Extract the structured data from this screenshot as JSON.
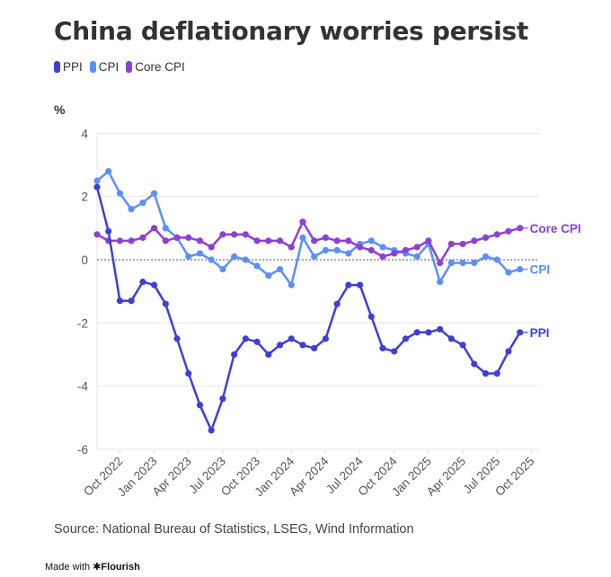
{
  "header": {
    "title": "China deflationary worries persist",
    "unit_label": "%"
  },
  "legend": [
    {
      "name": "PPI",
      "color": "#3f3fd6"
    },
    {
      "name": "CPI",
      "color": "#5b8ff9"
    },
    {
      "name": "Core CPI",
      "color": "#8e3fd4"
    }
  ],
  "footer": {
    "source": "Source: National Bureau of Statistics, LSEG, Wind Information",
    "made_with": "Made with",
    "brand": "Flourish",
    "brand_icon": "asterisk-icon"
  },
  "chart_data": {
    "type": "line",
    "title": "China deflationary worries persist",
    "xlabel": "",
    "ylabel": "%",
    "ylim": [
      -6,
      4
    ],
    "yticks": [
      4,
      2,
      0,
      -2,
      -4,
      -6
    ],
    "grid": true,
    "zero_line": "dotted",
    "legend_position": "top-left",
    "x_start": "Aug 2022",
    "x_end": "Sep 2025",
    "x_frequency": "monthly",
    "xtick_labels": [
      "Oct 2022",
      "Jan 2023",
      "Apr 2023",
      "Jul 2023",
      "Oct 2023",
      "Jan 2024",
      "Apr 2024",
      "Jul 2024",
      "Oct 2024",
      "Jan 2025",
      "Apr 2025",
      "Jul 2025",
      "Oct 2025"
    ],
    "xtick_month_index": [
      2,
      5,
      8,
      11,
      14,
      17,
      20,
      23,
      26,
      29,
      32,
      35,
      38
    ],
    "series": [
      {
        "name": "PPI",
        "color": "#3f3fd6",
        "end_label": "PPI",
        "values": [
          2.3,
          0.9,
          -1.3,
          -1.3,
          -0.7,
          -0.8,
          -1.4,
          -2.5,
          -3.6,
          -4.6,
          -5.4,
          -4.4,
          -3.0,
          -2.5,
          -2.6,
          -3.0,
          -2.7,
          -2.5,
          -2.7,
          -2.8,
          -2.5,
          -1.4,
          -0.8,
          -0.8,
          -1.8,
          -2.8,
          -2.9,
          -2.5,
          -2.3,
          -2.3,
          -2.2,
          -2.5,
          -2.7,
          -3.3,
          -3.6,
          -3.6,
          -2.9,
          -2.3
        ]
      },
      {
        "name": "CPI",
        "color": "#5b8ff9",
        "end_label": "CPI",
        "values": [
          2.5,
          2.8,
          2.1,
          1.6,
          1.8,
          2.1,
          1.0,
          0.7,
          0.1,
          0.2,
          0.0,
          -0.3,
          0.1,
          0.0,
          -0.2,
          -0.5,
          -0.3,
          -0.8,
          0.7,
          0.1,
          0.3,
          0.3,
          0.2,
          0.5,
          0.6,
          0.4,
          0.3,
          0.2,
          0.1,
          0.5,
          -0.7,
          -0.1,
          -0.1,
          -0.1,
          0.1,
          0.0,
          -0.4,
          -0.3
        ]
      },
      {
        "name": "Core CPI",
        "color": "#8e3fd4",
        "end_label": "Core CPI",
        "values": [
          0.8,
          0.6,
          0.6,
          0.6,
          0.7,
          1.0,
          0.6,
          0.7,
          0.7,
          0.6,
          0.4,
          0.8,
          0.8,
          0.8,
          0.6,
          0.6,
          0.6,
          0.4,
          1.2,
          0.6,
          0.7,
          0.6,
          0.6,
          0.4,
          0.3,
          0.1,
          0.2,
          0.3,
          0.4,
          0.6,
          -0.1,
          0.5,
          0.5,
          0.6,
          0.7,
          0.8,
          0.9,
          1.0
        ]
      }
    ]
  }
}
